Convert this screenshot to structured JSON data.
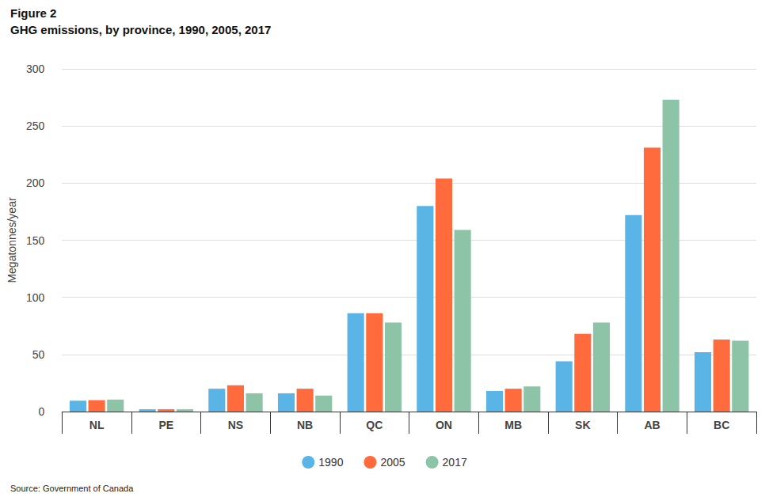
{
  "chart_data": {
    "type": "bar",
    "title": "Figure 2",
    "subtitle": "GHG emissions, by province, 1990, 2005, 2017",
    "y_label": "Megatonnes/year",
    "source": "Source: Government of Canada",
    "categories": [
      "NL",
      "PE",
      "NS",
      "NB",
      "QC",
      "ON",
      "MB",
      "SK",
      "AB",
      "BC"
    ],
    "series": [
      {
        "name": "1990",
        "color": "#5ab4e5",
        "values": [
          9.5,
          2,
          20,
          16,
          86,
          180,
          18,
          44,
          172,
          52
        ]
      },
      {
        "name": "2005",
        "color": "#ff6b3d",
        "values": [
          10,
          2,
          23,
          20,
          86,
          204,
          20,
          68,
          231,
          63
        ]
      },
      {
        "name": "2017",
        "color": "#8dc3a7",
        "values": [
          10.5,
          2,
          16,
          14,
          78,
          159,
          22,
          78,
          273,
          62
        ]
      }
    ],
    "ylim": [
      0,
      300
    ],
    "yticks": [
      0,
      50,
      100,
      150,
      200,
      250,
      300
    ],
    "grid": true,
    "legend": "bottom"
  }
}
